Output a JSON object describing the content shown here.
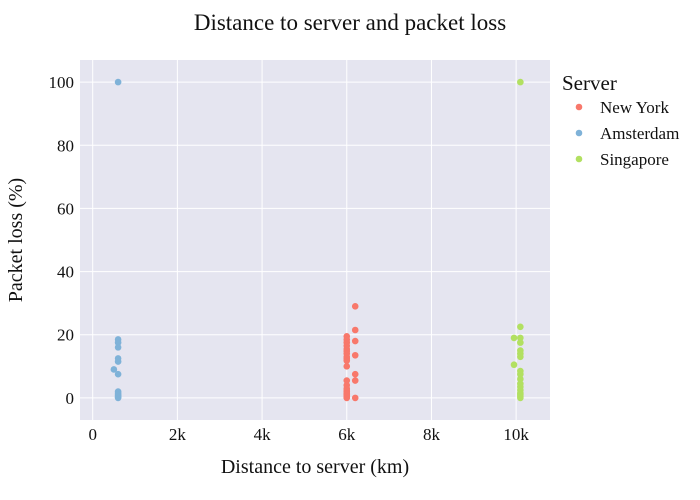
{
  "chart_data": {
    "type": "scatter",
    "title": "Distance to server and packet loss",
    "xlabel": "Distance to server (km)",
    "ylabel": "Packet loss (%)",
    "xlim": [
      -300,
      10800
    ],
    "ylim": [
      -7,
      107
    ],
    "x_ticks": [
      0,
      2000,
      4000,
      6000,
      8000,
      10000
    ],
    "x_tick_labels": [
      "0",
      "2k",
      "4k",
      "6k",
      "8k",
      "10k"
    ],
    "y_ticks": [
      0,
      20,
      40,
      60,
      80,
      100
    ],
    "y_tick_labels": [
      "0",
      "20",
      "40",
      "60",
      "80",
      "100"
    ],
    "grid": true,
    "legend": {
      "title": "Server",
      "placement": "right"
    },
    "series": [
      {
        "name": "New York",
        "color": "#f8786b",
        "x": [
          6000,
          6000,
          6000,
          6000,
          6000,
          6000,
          6000,
          6000,
          6000,
          6000,
          6000,
          6000,
          6000,
          6000,
          6000,
          6000,
          6000,
          6000,
          6000,
          6000,
          6000,
          6000,
          6000,
          6000,
          6000,
          6200,
          6200,
          6200,
          6200,
          6200,
          6200,
          6200
        ],
        "y": [
          19.5,
          18.5,
          17.5,
          16.5,
          15.5,
          14.8,
          14,
          13,
          12.5,
          11.8,
          10,
          5.5,
          4,
          3,
          2.5,
          2,
          1.5,
          1,
          0.8,
          0.5,
          0.3,
          0,
          0.6,
          0.2,
          1.2,
          29,
          21.5,
          18,
          13.5,
          7.5,
          5.5,
          0
        ]
      },
      {
        "name": "Amsterdam",
        "color": "#7fb2d8",
        "x": [
          600,
          600,
          600,
          600,
          600,
          600,
          500,
          600,
          600,
          600,
          600,
          600,
          600,
          600,
          600
        ],
        "y": [
          100,
          18.5,
          17.5,
          16,
          12.5,
          11.5,
          9,
          7.5,
          2,
          1.5,
          1,
          0.5,
          0,
          0.2,
          0.8
        ]
      },
      {
        "name": "Singapore",
        "color": "#b2e061",
        "x": [
          10100,
          10100,
          10100,
          9950,
          10100,
          10100,
          10100,
          10100,
          9950,
          10100,
          10100,
          10100,
          10100,
          10100,
          10100,
          10100,
          10100,
          10100,
          10100
        ],
        "y": [
          100,
          22.5,
          19,
          19,
          17.5,
          15,
          14,
          13,
          10.5,
          8.5,
          7.5,
          6,
          4.5,
          3.5,
          2.5,
          1.5,
          1,
          0.5,
          0
        ]
      }
    ]
  }
}
